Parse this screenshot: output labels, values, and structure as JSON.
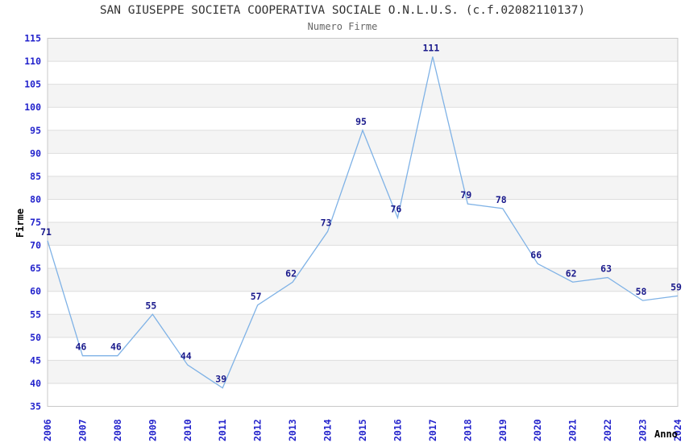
{
  "chart_data": {
    "type": "line",
    "title": "SAN GIUSEPPE SOCIETA COOPERATIVA SOCIALE O.N.L.U.S. (c.f.02082110137)",
    "subtitle": "Numero Firme",
    "xlabel": "Anno",
    "ylabel": "Firme",
    "categories": [
      "2006",
      "2007",
      "2008",
      "2009",
      "2010",
      "2011",
      "2012",
      "2013",
      "2014",
      "2015",
      "2016",
      "2017",
      "2018",
      "2019",
      "2020",
      "2021",
      "2022",
      "2023",
      "2024"
    ],
    "values": [
      71,
      46,
      46,
      55,
      44,
      39,
      57,
      62,
      73,
      95,
      76,
      111,
      79,
      78,
      66,
      62,
      63,
      58,
      59
    ],
    "ylim": [
      35,
      115
    ],
    "ytick_step": 5,
    "grid": "horizontal",
    "legend": "none",
    "band_fill": "alternating",
    "colors": {
      "line": "#7FB2E6",
      "point_label": "#1A1A8C",
      "tick_label": "#2323CC",
      "title": "#333333",
      "subtitle": "#666666",
      "gridline": "#DDDDDD",
      "band": "#F4F4F4",
      "border": "#C9C9C9",
      "axis_title": "#000000",
      "background": "#FFFFFF"
    }
  }
}
